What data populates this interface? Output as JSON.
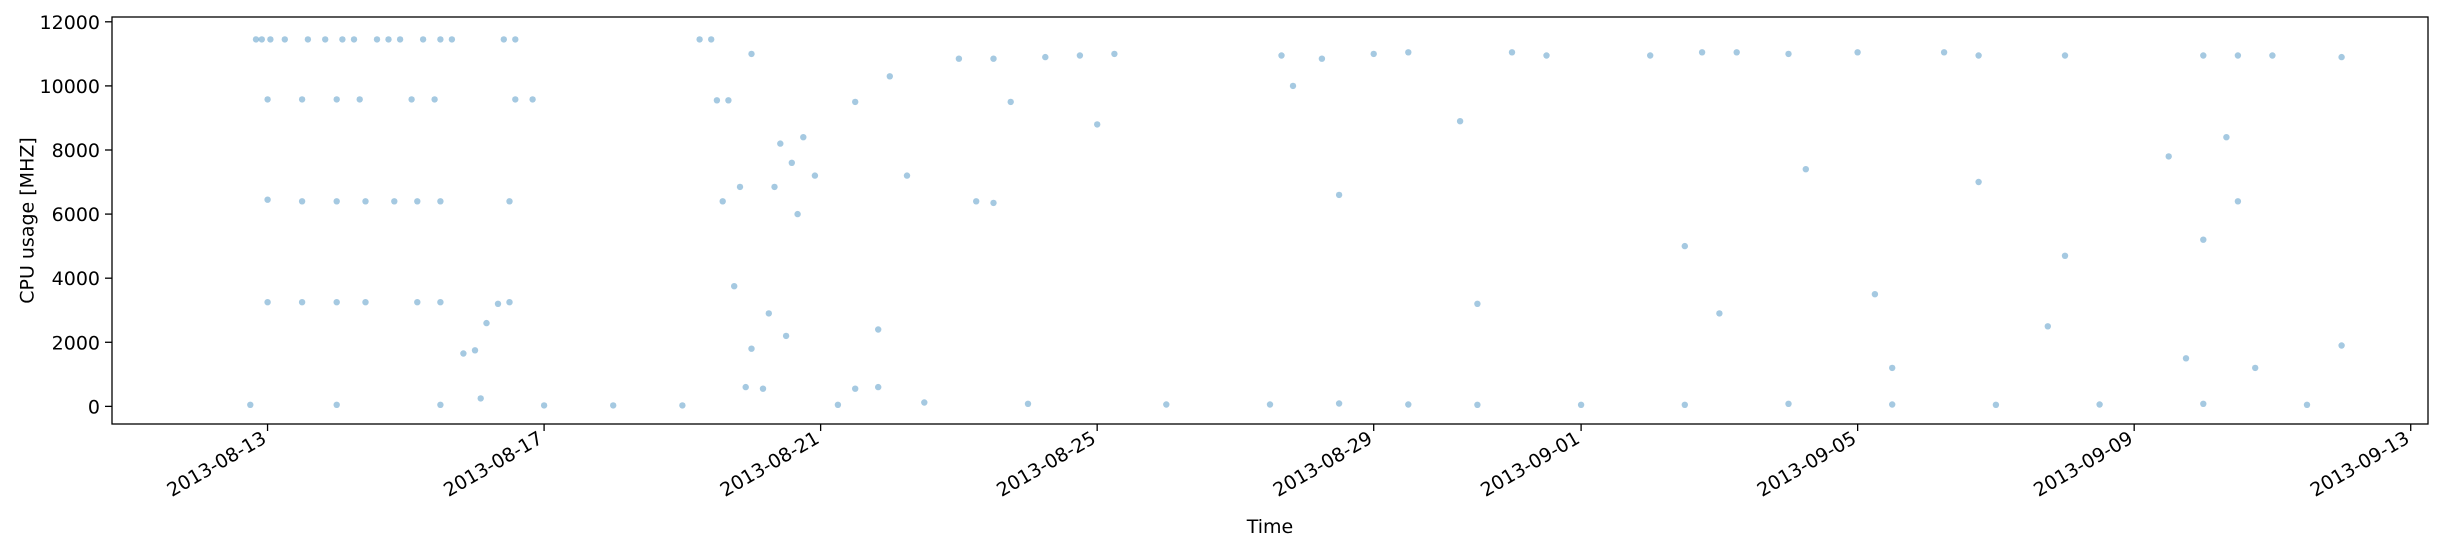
{
  "chart_data": {
    "type": "scatter",
    "xlabel": "Time",
    "ylabel": "CPU usage [MHZ]",
    "x_is_date": true,
    "xlim": [
      "2013-08-10T18:00",
      "2013-09-13T06:00"
    ],
    "ylim": [
      -550,
      12150
    ],
    "x_ticks": [
      "2013-08-13",
      "2013-08-17",
      "2013-08-21",
      "2013-08-25",
      "2013-08-29",
      "2013-09-01",
      "2013-09-05",
      "2013-09-09",
      "2013-09-13"
    ],
    "y_ticks": [
      0,
      2000,
      4000,
      6000,
      8000,
      10000,
      12000
    ],
    "y_tick_labels": [
      "0",
      "2000",
      "4000",
      "6000",
      "8000",
      "10000",
      "12000"
    ],
    "grid": false,
    "marker_color": "#1f77b4",
    "marker_alpha": 0.4,
    "series": [
      {
        "values": [
          [
            "2013-08-12T20:00",
            11450
          ],
          [
            "2013-08-12T22:00",
            11450
          ],
          [
            "2013-08-13T01:00",
            11450
          ],
          [
            "2013-08-13T06:00",
            11450
          ],
          [
            "2013-08-13T14:00",
            11450
          ],
          [
            "2013-08-13T20:00",
            11450
          ],
          [
            "2013-08-14T02:00",
            11450
          ],
          [
            "2013-08-14T06:00",
            11450
          ],
          [
            "2013-08-14T14:00",
            11450
          ],
          [
            "2013-08-14T18:00",
            11450
          ],
          [
            "2013-08-14T22:00",
            11450
          ],
          [
            "2013-08-15T06:00",
            11450
          ],
          [
            "2013-08-15T12:00",
            11450
          ],
          [
            "2013-08-15T16:00",
            11450
          ],
          [
            "2013-08-16T10:00",
            11450
          ],
          [
            "2013-08-16T14:00",
            11450
          ],
          [
            "2013-08-19T06:00",
            11450
          ],
          [
            "2013-08-19T10:00",
            11450
          ],
          [
            "2013-08-13T00:00",
            9580
          ],
          [
            "2013-08-13T12:00",
            9580
          ],
          [
            "2013-08-14T00:00",
            9580
          ],
          [
            "2013-08-14T08:00",
            9580
          ],
          [
            "2013-08-15T02:00",
            9580
          ],
          [
            "2013-08-15T10:00",
            9580
          ],
          [
            "2013-08-16T14:00",
            9580
          ],
          [
            "2013-08-16T20:00",
            9580
          ],
          [
            "2013-08-19T12:00",
            9550
          ],
          [
            "2013-08-19T16:00",
            9550
          ],
          [
            "2013-08-13T00:00",
            6450
          ],
          [
            "2013-08-13T12:00",
            6400
          ],
          [
            "2013-08-14T00:00",
            6400
          ],
          [
            "2013-08-14T10:00",
            6400
          ],
          [
            "2013-08-14T20:00",
            6400
          ],
          [
            "2013-08-15T04:00",
            6400
          ],
          [
            "2013-08-15T12:00",
            6400
          ],
          [
            "2013-08-16T12:00",
            6400
          ],
          [
            "2013-08-19T14:00",
            6400
          ],
          [
            "2013-08-19T20:00",
            6850
          ],
          [
            "2013-08-20T08:00",
            6850
          ],
          [
            "2013-08-13T00:00",
            3250
          ],
          [
            "2013-08-13T12:00",
            3250
          ],
          [
            "2013-08-14T00:00",
            3250
          ],
          [
            "2013-08-14T10:00",
            3250
          ],
          [
            "2013-08-15T04:00",
            3250
          ],
          [
            "2013-08-15T12:00",
            3250
          ],
          [
            "2013-08-16T12:00",
            3250
          ],
          [
            "2013-08-19T18:00",
            3750
          ],
          [
            "2013-08-15T20:00",
            1650
          ],
          [
            "2013-08-16T00:00",
            1750
          ],
          [
            "2013-08-16T04:00",
            2600
          ],
          [
            "2013-08-16T08:00",
            3200
          ],
          [
            "2013-08-20T00:00",
            1800
          ],
          [
            "2013-08-20T12:00",
            2200
          ],
          [
            "2013-08-21T20:00",
            2400
          ],
          [
            "2013-08-20T10:00",
            8200
          ],
          [
            "2013-08-20T14:00",
            7600
          ],
          [
            "2013-08-20T18:00",
            8400
          ],
          [
            "2013-08-20T22:00",
            7200
          ],
          [
            "2013-08-20T16:00",
            6000
          ],
          [
            "2013-08-20T06:00",
            2900
          ],
          [
            "2013-08-19T22:00",
            600
          ],
          [
            "2013-08-20T04:00",
            550
          ],
          [
            "2013-08-21T12:00",
            550
          ],
          [
            "2013-08-21T20:00",
            600
          ],
          [
            "2013-08-20T00:00",
            11000
          ],
          [
            "2013-08-21T12:00",
            9500
          ],
          [
            "2013-08-22T00:00",
            10300
          ],
          [
            "2013-08-23T00:00",
            10850
          ],
          [
            "2013-08-23T12:00",
            10850
          ],
          [
            "2013-08-24T06:00",
            10900
          ],
          [
            "2013-08-24T18:00",
            10950
          ],
          [
            "2013-08-25T06:00",
            11000
          ],
          [
            "2013-08-27T16:00",
            10950
          ],
          [
            "2013-08-28T06:00",
            10850
          ],
          [
            "2013-08-29T00:00",
            11000
          ],
          [
            "2013-08-29T12:00",
            11050
          ],
          [
            "2013-08-31T00:00",
            11050
          ],
          [
            "2013-08-31T12:00",
            10950
          ],
          [
            "2013-09-02T00:00",
            10950
          ],
          [
            "2013-09-02T18:00",
            11050
          ],
          [
            "2013-09-03T06:00",
            11050
          ],
          [
            "2013-09-04T00:00",
            11000
          ],
          [
            "2013-09-05T00:00",
            11050
          ],
          [
            "2013-09-06T06:00",
            11050
          ],
          [
            "2013-09-06T18:00",
            10950
          ],
          [
            "2013-09-08T00:00",
            10950
          ],
          [
            "2013-09-10T00:00",
            10950
          ],
          [
            "2013-09-10T12:00",
            10950
          ],
          [
            "2013-09-11T00:00",
            10950
          ],
          [
            "2013-09-12T00:00",
            10900
          ],
          [
            "2013-08-23T06:00",
            6400
          ],
          [
            "2013-08-23T12:00",
            6350
          ],
          [
            "2013-09-10T12:00",
            6400
          ],
          [
            "2013-08-23T18:00",
            9500
          ],
          [
            "2013-08-27T20:00",
            10000
          ],
          [
            "2013-09-10T08:00",
            8400
          ],
          [
            "2013-08-22T06:00",
            7200
          ],
          [
            "2013-08-25T00:00",
            8800
          ],
          [
            "2013-08-28T12:00",
            6600
          ],
          [
            "2013-08-30T06:00",
            8900
          ],
          [
            "2013-09-02T12:00",
            5000
          ],
          [
            "2013-09-04T06:00",
            7400
          ],
          [
            "2013-09-06T18:00",
            7000
          ],
          [
            "2013-09-08T00:00",
            4700
          ],
          [
            "2013-09-09T12:00",
            7800
          ],
          [
            "2013-09-10T00:00",
            5200
          ],
          [
            "2013-09-05T06:00",
            3500
          ],
          [
            "2013-09-05T12:00",
            1200
          ],
          [
            "2013-09-09T18:00",
            1500
          ],
          [
            "2013-09-10T18:00",
            1200
          ],
          [
            "2013-08-30T12:00",
            3200
          ],
          [
            "2013-09-03T00:00",
            2900
          ],
          [
            "2013-09-07T18:00",
            2500
          ],
          [
            "2013-09-12T00:00",
            1900
          ],
          [
            "2013-08-12T18:00",
            50
          ],
          [
            "2013-08-14T00:00",
            50
          ],
          [
            "2013-08-15T12:00",
            50
          ],
          [
            "2013-08-16T02:00",
            250
          ],
          [
            "2013-08-17T00:00",
            30
          ],
          [
            "2013-08-18T00:00",
            30
          ],
          [
            "2013-08-19T00:00",
            30
          ],
          [
            "2013-08-21T06:00",
            50
          ],
          [
            "2013-08-22T12:00",
            120
          ],
          [
            "2013-08-24T00:00",
            80
          ],
          [
            "2013-08-26T00:00",
            60
          ],
          [
            "2013-08-27T12:00",
            60
          ],
          [
            "2013-08-28T12:00",
            90
          ],
          [
            "2013-08-29T12:00",
            60
          ],
          [
            "2013-08-30T12:00",
            50
          ],
          [
            "2013-09-01T00:00",
            50
          ],
          [
            "2013-09-02T12:00",
            50
          ],
          [
            "2013-09-04T00:00",
            80
          ],
          [
            "2013-09-05T12:00",
            60
          ],
          [
            "2013-09-07T00:00",
            50
          ],
          [
            "2013-09-08T12:00",
            60
          ],
          [
            "2013-09-10T00:00",
            80
          ],
          [
            "2013-09-11T12:00",
            50
          ]
        ]
      }
    ]
  }
}
